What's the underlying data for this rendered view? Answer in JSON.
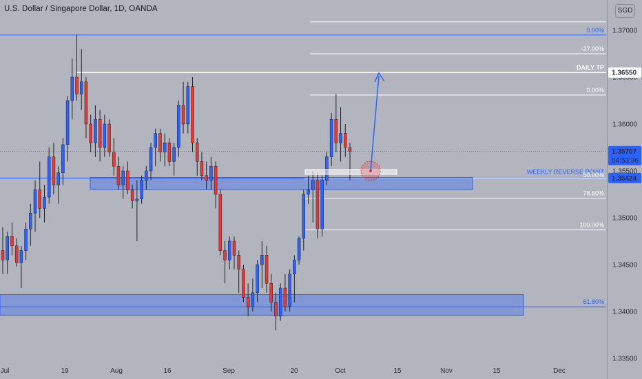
{
  "header": {
    "title": "U.S. Dollar / Singapore Dollar, 1D, OANDA",
    "currency": "SGD"
  },
  "chart_data": {
    "type": "candlestick",
    "symbol": "USD/SGD",
    "timeframe": "1D",
    "source": "OANDA",
    "x_ticks": [
      "Jul",
      "19",
      "Aug",
      "16",
      "Sep",
      "20",
      "Oct",
      "Nov",
      "15",
      "Dec"
    ],
    "y_ticks": [
      "1.37000",
      "1.36500",
      "1.36000",
      "1.35500",
      "1.35000",
      "1.34500",
      "1.34000",
      "1.33500"
    ],
    "ylim": [
      1.335,
      1.3725
    ],
    "price_labels": [
      {
        "text": "1.36550",
        "color": "#ffffff"
      },
      {
        "text": "1.35707",
        "sub": "04:53:36",
        "color": "#2962ff"
      },
      {
        "text": "1.35424",
        "color": "#2962ff"
      }
    ],
    "horizontal_levels": [
      {
        "price": 1.3695,
        "label": "0.00%",
        "color": "#2962ff"
      },
      {
        "price": 1.3709,
        "label": "",
        "color": "#ffffff"
      },
      {
        "price": 1.3675,
        "label": "-27.00%",
        "color": "#ffffff"
      },
      {
        "price": 1.3655,
        "label": "DAILY TP",
        "color": "#ffffff"
      },
      {
        "price": 1.3631,
        "label": "0.00%",
        "color": "#ffffff"
      },
      {
        "price": 1.3571,
        "label": "",
        "color": "#4a76c8"
      },
      {
        "price": 1.35424,
        "label": "WEEKLY REVERSE POINT",
        "color": "#2962ff"
      },
      {
        "price": 1.3542,
        "label": "50.00%",
        "color": "#ffffff"
      },
      {
        "price": 1.3521,
        "label": "78.60%",
        "color": "#ffffff"
      },
      {
        "price": 1.3487,
        "label": "100.00%",
        "color": "#ffffff"
      },
      {
        "price": 1.3405,
        "label": "61.80%",
        "color": "#2962ff"
      }
    ],
    "zones": [
      {
        "from": 1.353,
        "to": 1.3543,
        "color": "#2962ff"
      },
      {
        "from": 1.3396,
        "to": 1.3418,
        "color": "#2962ff"
      }
    ],
    "candles": [
      [
        1.3465,
        1.349,
        1.344,
        1.3455
      ],
      [
        1.3455,
        1.3485,
        1.344,
        1.348
      ],
      [
        1.348,
        1.3495,
        1.346,
        1.347
      ],
      [
        1.347,
        1.3478,
        1.3448,
        1.3452
      ],
      [
        1.3452,
        1.347,
        1.3425,
        1.3465
      ],
      [
        1.3465,
        1.3495,
        1.3455,
        1.3488
      ],
      [
        1.3488,
        1.3515,
        1.347,
        1.3505
      ],
      [
        1.3505,
        1.354,
        1.3485,
        1.353
      ],
      [
        1.353,
        1.356,
        1.35,
        1.351
      ],
      [
        1.351,
        1.3535,
        1.3495,
        1.3522
      ],
      [
        1.3522,
        1.3575,
        1.3515,
        1.3565
      ],
      [
        1.3565,
        1.358,
        1.3525,
        1.3535
      ],
      [
        1.3535,
        1.3555,
        1.3515,
        1.3548
      ],
      [
        1.3548,
        1.3585,
        1.3535,
        1.3578
      ],
      [
        1.3578,
        1.363,
        1.356,
        1.3625
      ],
      [
        1.3625,
        1.367,
        1.3605,
        1.365
      ],
      [
        1.365,
        1.3695,
        1.3625,
        1.3632
      ],
      [
        1.3632,
        1.368,
        1.3615,
        1.3645
      ],
      [
        1.3645,
        1.365,
        1.3585,
        1.36
      ],
      [
        1.36,
        1.361,
        1.357,
        1.358
      ],
      [
        1.358,
        1.362,
        1.3565,
        1.3605
      ],
      [
        1.3605,
        1.3615,
        1.356,
        1.3575
      ],
      [
        1.3575,
        1.361,
        1.3565,
        1.36
      ],
      [
        1.36,
        1.3605,
        1.3565,
        1.357
      ],
      [
        1.357,
        1.3585,
        1.3545,
        1.3555
      ],
      [
        1.3555,
        1.3565,
        1.353,
        1.3535
      ],
      [
        1.3535,
        1.3555,
        1.352,
        1.355
      ],
      [
        1.355,
        1.356,
        1.3525,
        1.353
      ],
      [
        1.353,
        1.3535,
        1.351,
        1.3518
      ],
      [
        1.3518,
        1.354,
        1.3475,
        1.352
      ],
      [
        1.352,
        1.3545,
        1.3515,
        1.354
      ],
      [
        1.354,
        1.3555,
        1.353,
        1.355
      ],
      [
        1.355,
        1.358,
        1.354,
        1.3575
      ],
      [
        1.3575,
        1.3595,
        1.3555,
        1.359
      ],
      [
        1.359,
        1.3595,
        1.356,
        1.357
      ],
      [
        1.357,
        1.359,
        1.3555,
        1.358
      ],
      [
        1.358,
        1.3585,
        1.3555,
        1.356
      ],
      [
        1.356,
        1.358,
        1.3545,
        1.3575
      ],
      [
        1.3575,
        1.3625,
        1.3565,
        1.362
      ],
      [
        1.362,
        1.3645,
        1.359,
        1.36
      ],
      [
        1.36,
        1.3645,
        1.359,
        1.364
      ],
      [
        1.364,
        1.365,
        1.357,
        1.358
      ],
      [
        1.358,
        1.3585,
        1.3545,
        1.356
      ],
      [
        1.356,
        1.357,
        1.354,
        1.3545
      ],
      [
        1.3545,
        1.356,
        1.353,
        1.354
      ],
      [
        1.354,
        1.3565,
        1.353,
        1.3555
      ],
      [
        1.3555,
        1.356,
        1.351,
        1.3525
      ],
      [
        1.3525,
        1.353,
        1.346,
        1.3465
      ],
      [
        1.3465,
        1.3475,
        1.343,
        1.3455
      ],
      [
        1.3455,
        1.348,
        1.3445,
        1.3475
      ],
      [
        1.3475,
        1.348,
        1.3445,
        1.346
      ],
      [
        1.346,
        1.3465,
        1.342,
        1.3445
      ],
      [
        1.3445,
        1.345,
        1.341,
        1.3415
      ],
      [
        1.3415,
        1.343,
        1.3395,
        1.3405
      ],
      [
        1.3405,
        1.3435,
        1.34,
        1.342
      ],
      [
        1.342,
        1.3455,
        1.341,
        1.345
      ],
      [
        1.345,
        1.3475,
        1.3425,
        1.346
      ],
      [
        1.346,
        1.347,
        1.342,
        1.343
      ],
      [
        1.343,
        1.344,
        1.34,
        1.341
      ],
      [
        1.341,
        1.342,
        1.338,
        1.3395
      ],
      [
        1.3395,
        1.343,
        1.339,
        1.3425
      ],
      [
        1.3425,
        1.344,
        1.34,
        1.3405
      ],
      [
        1.3405,
        1.3445,
        1.34,
        1.344
      ],
      [
        1.344,
        1.346,
        1.341,
        1.3455
      ],
      [
        1.3455,
        1.348,
        1.345,
        1.3478
      ],
      [
        1.3478,
        1.353,
        1.3465,
        1.3525
      ],
      [
        1.3525,
        1.3545,
        1.3515,
        1.353
      ],
      [
        1.353,
        1.355,
        1.3495,
        1.354
      ],
      [
        1.354,
        1.3548,
        1.3478,
        1.3488
      ],
      [
        1.3488,
        1.3545,
        1.348,
        1.354
      ],
      [
        1.354,
        1.357,
        1.3535,
        1.3565
      ],
      [
        1.3565,
        1.3612,
        1.3555,
        1.3605
      ],
      [
        1.3605,
        1.3632,
        1.357,
        1.358
      ],
      [
        1.358,
        1.3618,
        1.356,
        1.359
      ],
      [
        1.359,
        1.36,
        1.3565,
        1.3575
      ],
      [
        1.3575,
        1.358,
        1.354,
        1.3571
      ]
    ],
    "colors": {
      "up": "#2962ff",
      "down": "#e53935",
      "wick": "#1e222d"
    }
  }
}
